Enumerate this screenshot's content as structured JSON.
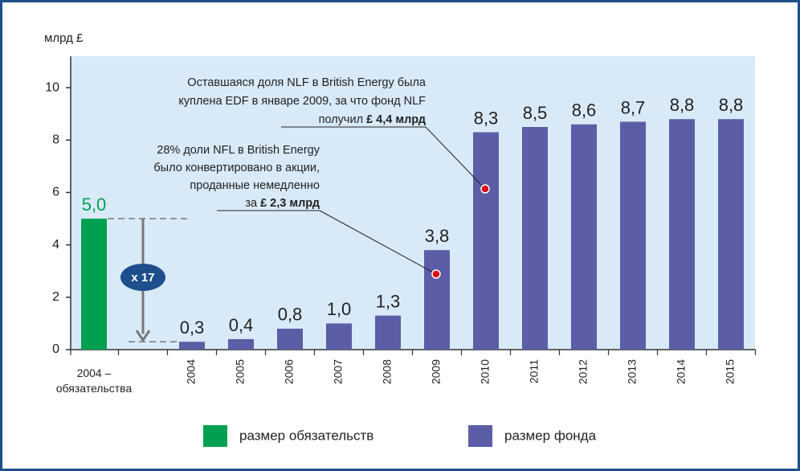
{
  "chart_data": {
    "type": "bar",
    "y_label": "млрд £",
    "categories": [
      "2004 –\nобязательства",
      null,
      "2004",
      "2005",
      "2006",
      "2007",
      "2008",
      "2009",
      "2010",
      "2011",
      "2012",
      "2013",
      "2014",
      "2015"
    ],
    "series": [
      {
        "name": "размер обязательств",
        "color": "#00a050",
        "values": [
          5.0,
          null,
          null,
          null,
          null,
          null,
          null,
          null,
          null,
          null,
          null,
          null,
          null,
          null
        ],
        "value_labels": [
          "5,0",
          null,
          null,
          null,
          null,
          null,
          null,
          null,
          null,
          null,
          null,
          null,
          null,
          null
        ]
      },
      {
        "name": "размер фонда",
        "color": "#5b5ea6",
        "values": [
          null,
          null,
          0.3,
          0.4,
          0.8,
          1.0,
          1.3,
          3.8,
          8.3,
          8.5,
          8.6,
          8.7,
          8.8,
          8.8
        ],
        "value_labels": [
          null,
          null,
          "0,3",
          "0,4",
          "0,8",
          "1,0",
          "1,3",
          "3,8",
          "8,3",
          "8,5",
          "8,6",
          "8,7",
          "8,8",
          "8,8"
        ]
      }
    ],
    "ylim": [
      0,
      11.2
    ],
    "yticks": [
      0,
      2,
      4,
      6,
      8,
      10
    ],
    "ratio_label": "x 17",
    "annotations": [
      {
        "lines": [
          "Оставшаяся доля NLF в British Energy была",
          "куплена EDF в январе 2009, за что фонд NLF",
          "получил"
        ],
        "emphasis": "£ 4,4 млрд"
      },
      {
        "lines": [
          "28% доли NFL в British Energy",
          "было конвертировано в акции,",
          "проданные немедленно",
          "за"
        ],
        "emphasis": "£ 2,3 млрд"
      }
    ]
  }
}
